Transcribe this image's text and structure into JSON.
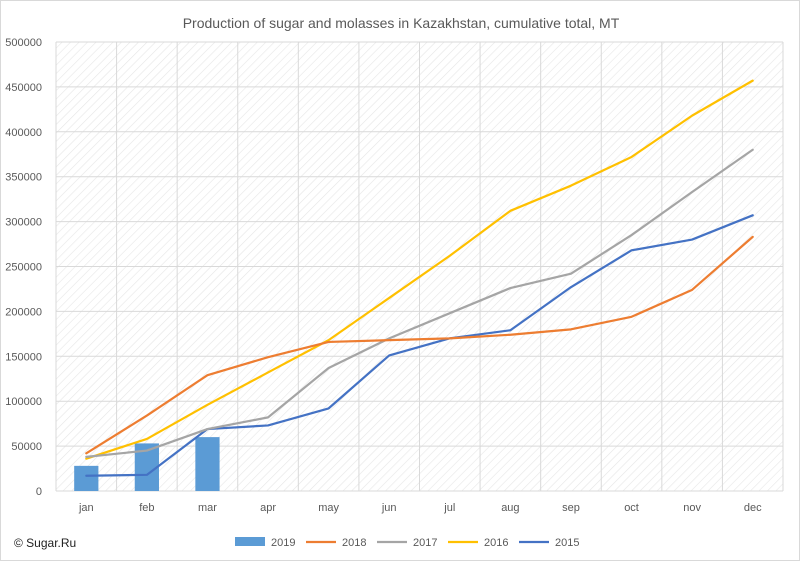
{
  "chart_data": {
    "type": "bar+line",
    "title": "Production of sugar and molasses in Kazakhstan, cumulative total, MT",
    "categories": [
      "jan",
      "feb",
      "mar",
      "apr",
      "may",
      "jun",
      "jul",
      "aug",
      "sep",
      "oct",
      "nov",
      "dec"
    ],
    "ylim": [
      0,
      500000
    ],
    "yticks": [
      "0",
      "50000",
      "100000",
      "150000",
      "200000",
      "250000",
      "300000",
      "350000",
      "400000",
      "450000",
      "500000"
    ],
    "grid": true,
    "legend_position": "bottom",
    "series": [
      {
        "name": "2019",
        "type": "bar",
        "color": "#5b9bd5",
        "values": [
          28000,
          53000,
          60000,
          null,
          null,
          null,
          null,
          null,
          null,
          null,
          null,
          null
        ]
      },
      {
        "name": "2018",
        "type": "line",
        "color": "#ed7d31",
        "values": [
          42000,
          84000,
          129000,
          149000,
          166000,
          168000,
          170000,
          174000,
          180000,
          194000,
          224000,
          283000
        ]
      },
      {
        "name": "2017",
        "type": "line",
        "color": "#a5a5a5",
        "values": [
          38000,
          45000,
          69000,
          82000,
          137000,
          170000,
          198000,
          226000,
          242000,
          285000,
          333000,
          380000
        ]
      },
      {
        "name": "2016",
        "type": "line",
        "color": "#ffc000",
        "values": [
          36000,
          58000,
          96000,
          132000,
          168000,
          215000,
          262000,
          312000,
          340000,
          372000,
          418000,
          457000
        ]
      },
      {
        "name": "2015",
        "type": "line",
        "color": "#4472c4",
        "values": [
          17000,
          18000,
          69000,
          73000,
          92000,
          151000,
          170000,
          179000,
          227000,
          268000,
          280000,
          307000
        ]
      }
    ]
  },
  "copyright": "© Sugar.Ru"
}
